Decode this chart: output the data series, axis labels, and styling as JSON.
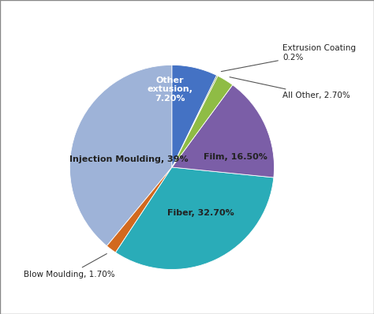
{
  "slices": [
    {
      "label": "Injection Moulding, 39%",
      "value": 39.0,
      "color": "#9EB3D8"
    },
    {
      "label": "Blow Moulding, 1.70%",
      "value": 1.7,
      "color": "#D2691E"
    },
    {
      "label": "Fiber, 32.70%",
      "value": 32.7,
      "color": "#2AACB8"
    },
    {
      "label": "Film, 16.50%",
      "value": 16.5,
      "color": "#7B5EA7"
    },
    {
      "label": "All Other, 2.70%",
      "value": 2.7,
      "color": "#8FBC45"
    },
    {
      "label": "Extrusion Coating\n0.2%",
      "value": 0.2,
      "color": "#6B8E23"
    },
    {
      "label": "Other\nextusion,\n7.20%",
      "value": 7.2,
      "color": "#4472C4"
    }
  ],
  "startangle": 90,
  "background_color": "#FFFFFF",
  "label_fontsize": 8.0,
  "border_color": "#AAAAAA"
}
